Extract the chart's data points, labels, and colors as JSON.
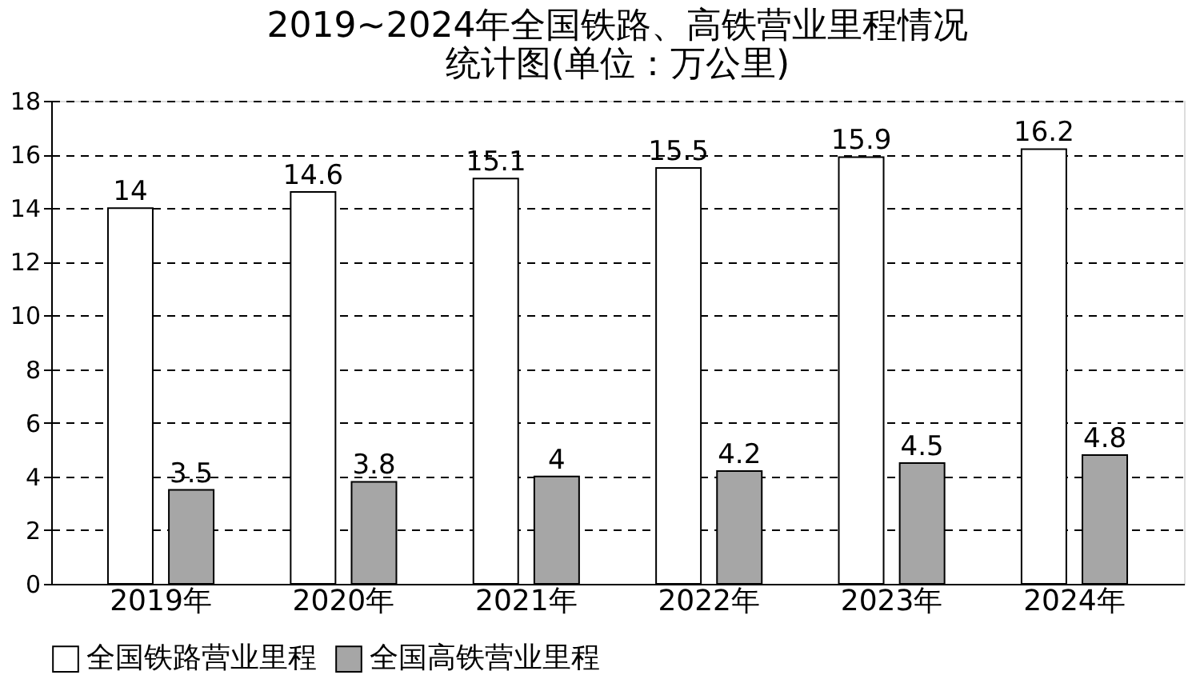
{
  "chart_data": {
    "type": "bar",
    "title": "2019~2024年全国铁路、高铁营业里程情况",
    "subtitle": "统计图(单位：万公里)",
    "categories": [
      "2019年",
      "2020年",
      "2021年",
      "2022年",
      "2023年",
      "2024年"
    ],
    "series": [
      {
        "name": "全国铁路营业里程",
        "color": "#ffffff",
        "values": [
          14,
          14.6,
          15.1,
          15.5,
          15.9,
          16.2
        ]
      },
      {
        "name": "全国高铁营业里程",
        "color": "#a6a6a6",
        "values": [
          3.5,
          3.8,
          4,
          4.2,
          4.5,
          4.8
        ]
      }
    ],
    "ylim": [
      0,
      18
    ],
    "yticks": [
      0,
      2,
      4,
      6,
      8,
      10,
      12,
      14,
      16,
      18
    ],
    "grid": "y",
    "legend": "bottom",
    "data_labels": true
  }
}
